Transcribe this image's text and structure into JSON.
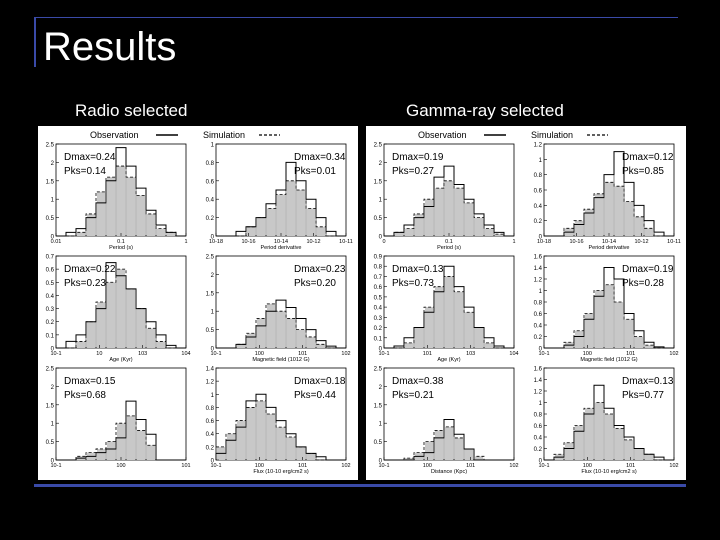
{
  "slide": {
    "title": "Results",
    "left_heading": "Radio selected",
    "right_heading": "Gamma-ray selected"
  },
  "chart_data": [
    {
      "group": "Radio selected",
      "legend": [
        "Observation",
        "Simulation"
      ],
      "type": "bar",
      "panels": [
        {
          "xlabel": "Period (s)",
          "xticks": [
            "0.01",
            "0.1",
            "1"
          ],
          "yticks": [
            "0",
            "0.5",
            "1",
            "1.5",
            "2",
            "2.5"
          ],
          "ymax": 2.5,
          "stats": [
            "Dmax=0.24",
            "Pks=0.14"
          ],
          "hist": [
            0,
            0.1,
            0.2,
            0.5,
            0.9,
            1.5,
            2.4,
            1.9,
            1.3,
            0.7,
            0.3,
            0.1,
            0
          ],
          "sim": [
            0,
            0,
            0.1,
            0.6,
            1.2,
            1.6,
            1.9,
            1.6,
            1.1,
            0.6,
            0.2,
            0.1,
            0
          ]
        },
        {
          "xlabel": "Period derivative",
          "xticks": [
            "10-18",
            "10-16",
            "10-14",
            "10-12",
            "10-11"
          ],
          "yticks": [
            "0",
            "0.2",
            "0.4",
            "0.6",
            "0.8",
            "1"
          ],
          "ymax": 1.0,
          "stats": [
            "Dmax=0.34",
            "Pks=0.01"
          ],
          "hist": [
            0,
            0,
            0.05,
            0.1,
            0.2,
            0.35,
            0.5,
            0.8,
            0.6,
            0.4,
            0.2,
            0.05,
            0
          ],
          "sim": [
            0,
            0,
            0,
            0.1,
            0.2,
            0.3,
            0.45,
            0.6,
            0.5,
            0.3,
            0.1,
            0,
            0
          ]
        },
        {
          "xlabel": "Age (Kyr)",
          "xticks": [
            "10-1",
            "10",
            "103",
            "104"
          ],
          "yticks": [
            "0",
            "0.1",
            "0.2",
            "0.3",
            "0.4",
            "0.5",
            "0.6",
            "0.7"
          ],
          "ymax": 0.7,
          "stats": [
            "Dmax=0.22",
            "Pks=0.23"
          ],
          "hist": [
            0,
            0.05,
            0.1,
            0.2,
            0.3,
            0.65,
            0.55,
            0.45,
            0.3,
            0.2,
            0.1,
            0.02,
            0
          ],
          "sim": [
            0,
            0,
            0.05,
            0.2,
            0.35,
            0.5,
            0.6,
            0.45,
            0.3,
            0.15,
            0.05,
            0,
            0
          ]
        },
        {
          "xlabel": "Magnetic field (1012 G)",
          "xticks": [
            "10-1",
            "100",
            "101",
            "102"
          ],
          "yticks": [
            "0",
            "0.5",
            "1",
            "1.5",
            "2",
            "2.5"
          ],
          "ymax": 2.5,
          "stats": [
            "Dmax=0.23",
            "Pks=0.20"
          ],
          "hist": [
            0,
            0,
            0.1,
            0.3,
            0.6,
            1.0,
            1.3,
            1.1,
            0.8,
            0.5,
            0.2,
            0.05,
            0
          ],
          "sim": [
            0,
            0,
            0.1,
            0.4,
            0.8,
            1.2,
            1.0,
            0.8,
            0.5,
            0.3,
            0.1,
            0,
            0
          ]
        },
        {
          "xlabel": "",
          "xticks": [
            "10-1",
            "100",
            "101"
          ],
          "yticks": [
            "0",
            "0.5",
            "1",
            "1.5",
            "2",
            "2.5"
          ],
          "ymax": 2.5,
          "stats": [
            "Dmax=0.15",
            "Pks=0.68"
          ],
          "hist": [
            0,
            0,
            0.05,
            0.1,
            0.2,
            0.3,
            0.6,
            1.6,
            1.1,
            0.7,
            0,
            0,
            0
          ],
          "sim": [
            0,
            0,
            0.1,
            0.2,
            0.3,
            0.5,
            1.0,
            1.2,
            0.8,
            0.4,
            0,
            0,
            0
          ]
        },
        {
          "xlabel": "Flux (10-10 erg/cm2 s)",
          "xticks": [
            "10-1",
            "100",
            "101",
            "102"
          ],
          "yticks": [
            "0",
            "0.2",
            "0.4",
            "0.6",
            "0.8",
            "1",
            "1.2",
            "1.4"
          ],
          "ymax": 1.4,
          "stats": [
            "Dmax=0.18",
            "Pks=0.44"
          ],
          "hist": [
            0.1,
            0.3,
            0.5,
            0.9,
            1.0,
            0.8,
            0.6,
            0.4,
            0.2,
            0.1,
            0.05,
            0,
            0
          ],
          "sim": [
            0.2,
            0.4,
            0.6,
            0.8,
            0.9,
            0.7,
            0.5,
            0.35,
            0.2,
            0.1,
            0,
            0,
            0
          ]
        }
      ]
    },
    {
      "group": "Gamma-ray selected",
      "legend": [
        "Observation",
        "Simulation"
      ],
      "type": "bar",
      "panels": [
        {
          "xlabel": "Period (s)",
          "xticks": [
            "0",
            "0.1",
            "1"
          ],
          "yticks": [
            "0",
            "0.5",
            "1",
            "1.5",
            "2",
            "2.5"
          ],
          "ymax": 2.5,
          "stats": [
            "Dmax=0.19",
            "Pks=0.27"
          ],
          "hist": [
            0,
            0.1,
            0.3,
            0.5,
            0.8,
            1.6,
            1.9,
            1.4,
            1.0,
            0.6,
            0.3,
            0.1,
            0
          ],
          "sim": [
            0,
            0.1,
            0.2,
            0.6,
            1.0,
            1.3,
            1.5,
            1.3,
            0.9,
            0.5,
            0.2,
            0.05,
            0
          ]
        },
        {
          "xlabel": "Period derivative",
          "xticks": [
            "10-18",
            "10-16",
            "10-14",
            "10-12",
            "10-11"
          ],
          "yticks": [
            "0",
            "0.2",
            "0.4",
            "0.6",
            "0.8",
            "1",
            "1.2"
          ],
          "ymax": 1.2,
          "stats": [
            "Dmax=0.12",
            "Pks=0.85"
          ],
          "hist": [
            0,
            0,
            0.05,
            0.15,
            0.3,
            0.5,
            0.8,
            1.1,
            0.7,
            0.4,
            0.2,
            0.05,
            0
          ],
          "sim": [
            0,
            0,
            0.1,
            0.2,
            0.35,
            0.55,
            0.7,
            0.65,
            0.45,
            0.25,
            0.1,
            0,
            0
          ]
        },
        {
          "xlabel": "Age (Kyr)",
          "xticks": [
            "10-1",
            "101",
            "103",
            "104"
          ],
          "yticks": [
            "0",
            "0.1",
            "0.2",
            "0.3",
            "0.4",
            "0.5",
            "0.6",
            "0.7",
            "0.8",
            "0.9"
          ],
          "ymax": 0.9,
          "stats": [
            "Dmax=0.13",
            "Pks=0.73"
          ],
          "hist": [
            0,
            0.02,
            0.1,
            0.2,
            0.35,
            0.55,
            0.8,
            0.6,
            0.4,
            0.2,
            0.1,
            0.02,
            0
          ],
          "sim": [
            0,
            0,
            0.05,
            0.2,
            0.4,
            0.6,
            0.7,
            0.55,
            0.35,
            0.2,
            0.05,
            0,
            0
          ]
        },
        {
          "xlabel": "Magnetic field (1012 G)",
          "xticks": [
            "10-1",
            "100",
            "101",
            "102"
          ],
          "yticks": [
            "0",
            "0.2",
            "0.4",
            "0.6",
            "0.8",
            "1",
            "1.2",
            "1.4",
            "1.6"
          ],
          "ymax": 1.6,
          "stats": [
            "Dmax=0.19",
            "Pks=0.28"
          ],
          "hist": [
            0,
            0,
            0.05,
            0.2,
            0.5,
            0.9,
            1.4,
            1.2,
            0.6,
            0.3,
            0.1,
            0.02,
            0
          ],
          "sim": [
            0,
            0,
            0.1,
            0.3,
            0.6,
            1.0,
            1.1,
            0.8,
            0.5,
            0.2,
            0.05,
            0,
            0
          ]
        },
        {
          "xlabel": "Distance (Kpc)",
          "xticks": [
            "10-1",
            "100",
            "101",
            "102"
          ],
          "yticks": [
            "0",
            "0.5",
            "1",
            "1.5",
            "2",
            "2.5"
          ],
          "ymax": 2.5,
          "stats": [
            "Dmax=0.38",
            "Pks=0.21"
          ],
          "hist": [
            0,
            0,
            0,
            0.1,
            0.2,
            0.6,
            1.1,
            0.7,
            0.3,
            0,
            0,
            0,
            0
          ],
          "sim": [
            0,
            0,
            0.05,
            0.2,
            0.5,
            0.8,
            0.9,
            0.6,
            0.3,
            0.1,
            0,
            0,
            0
          ]
        },
        {
          "xlabel": "Flux (10-10 erg/cm2 s)",
          "xticks": [
            "10-1",
            "100",
            "101",
            "102"
          ],
          "yticks": [
            "0",
            "0.2",
            "0.4",
            "0.6",
            "0.8",
            "1",
            "1.2",
            "1.4",
            "1.6"
          ],
          "ymax": 1.6,
          "stats": [
            "Dmax=0.13",
            "Pks=0.77"
          ],
          "hist": [
            0,
            0.05,
            0.2,
            0.5,
            0.8,
            1.3,
            0.9,
            0.6,
            0.4,
            0.2,
            0.1,
            0.05,
            0
          ],
          "sim": [
            0,
            0.1,
            0.3,
            0.6,
            0.9,
            1.0,
            0.8,
            0.55,
            0.35,
            0.2,
            0.1,
            0,
            0
          ]
        }
      ]
    }
  ]
}
